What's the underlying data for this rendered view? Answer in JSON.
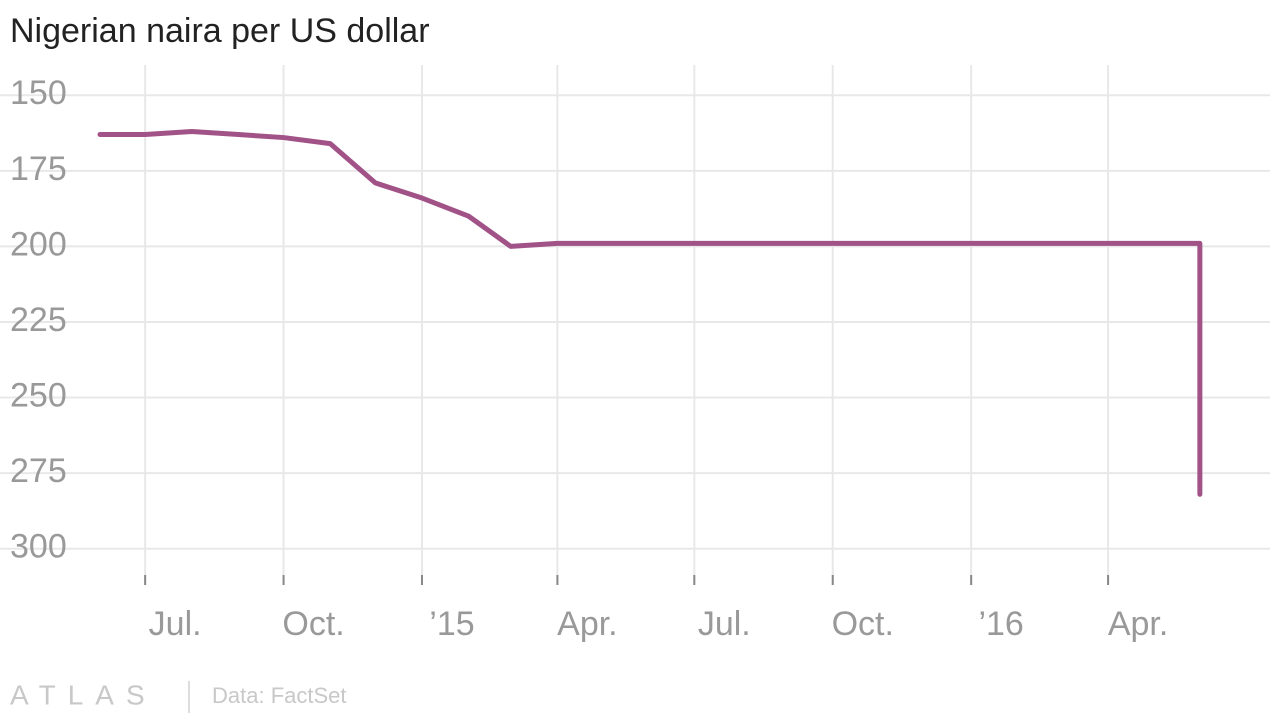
{
  "chart_data": {
    "type": "line",
    "title": "Nigerian naira per US dollar",
    "x": [
      "2014-06",
      "2014-07",
      "2014-08",
      "2014-09",
      "2014-10",
      "2014-11",
      "2014-12",
      "2015-01",
      "2015-02",
      "2015-03",
      "2015-04",
      "2015-05",
      "2015-06",
      "2015-07",
      "2015-08",
      "2015-09",
      "2015-10",
      "2015-11",
      "2015-12",
      "2016-01",
      "2016-02",
      "2016-03",
      "2016-04",
      "2016-05",
      "2016-06",
      "2016-06"
    ],
    "series": [
      {
        "name": "Naira per US dollar",
        "color": "#a15287",
        "values": [
          163,
          163,
          162,
          163,
          164,
          166,
          179,
          184,
          190,
          200,
          199,
          199,
          199,
          199,
          199,
          199,
          199,
          199,
          199,
          199,
          199,
          199,
          199,
          199,
          199,
          282
        ]
      }
    ],
    "xlim": [
      "2014-06",
      "2016-07"
    ],
    "xticks": [
      {
        "value": "2014-07",
        "label": "Jul."
      },
      {
        "value": "2014-10",
        "label": "Oct."
      },
      {
        "value": "2015-01",
        "label": "’15"
      },
      {
        "value": "2015-04",
        "label": "Apr."
      },
      {
        "value": "2015-07",
        "label": "Jul."
      },
      {
        "value": "2015-10",
        "label": "Oct."
      },
      {
        "value": "2016-01",
        "label": "’16"
      },
      {
        "value": "2016-04",
        "label": "Apr."
      }
    ],
    "ylim": [
      140,
      312
    ],
    "y_inverted": true,
    "yticks": [
      150,
      175,
      200,
      225,
      250,
      275,
      300
    ],
    "grid": true,
    "footer": {
      "logo": "ATLAS",
      "source": "Data: FactSet"
    }
  }
}
